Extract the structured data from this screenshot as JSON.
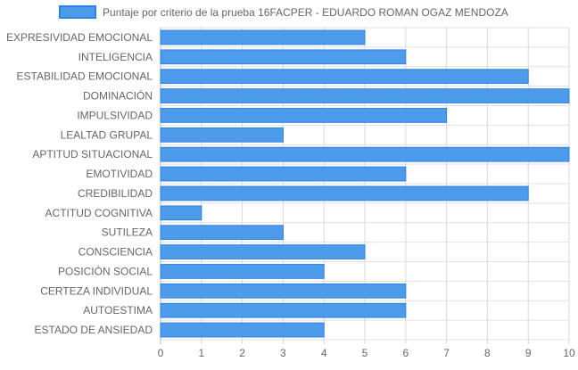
{
  "chart_data": {
    "type": "bar",
    "orientation": "horizontal",
    "categories": [
      "EXPRESIVIDAD EMOCIONAL",
      "INTELIGENCIA",
      "ESTABILIDAD EMOCIONAL",
      "DOMINACIÓN",
      "IMPULSIVIDAD",
      "LEALTAD GRUPAL",
      "APTITUD SITUACIONAL",
      "EMOTIVIDAD",
      "CREDIBILIDAD",
      "ACTITUD COGNITIVA",
      "SUTILEZA",
      "CONSCIENCIA",
      "POSICIÓN SOCIAL",
      "CERTEZA INDIVIDUAL",
      "AUTOESTIMA",
      "ESTADO DE ANSIEDAD"
    ],
    "series": [
      {
        "name": "Puntaje por criterio de la prueba 16FACPER - EDUARDO ROMAN OGAZ MENDOZA",
        "values": [
          5,
          6,
          9,
          10,
          7,
          3,
          10,
          6,
          9,
          1,
          3,
          5,
          4,
          6,
          6,
          4
        ],
        "color": "#4d9beb",
        "border_color": "#2f80e0"
      }
    ],
    "x_ticks": [
      "0",
      "1",
      "2",
      "3",
      "4",
      "5",
      "6",
      "7",
      "8",
      "9",
      "10"
    ],
    "xlim": [
      0,
      10
    ],
    "grid": true,
    "legend_position": "top"
  }
}
